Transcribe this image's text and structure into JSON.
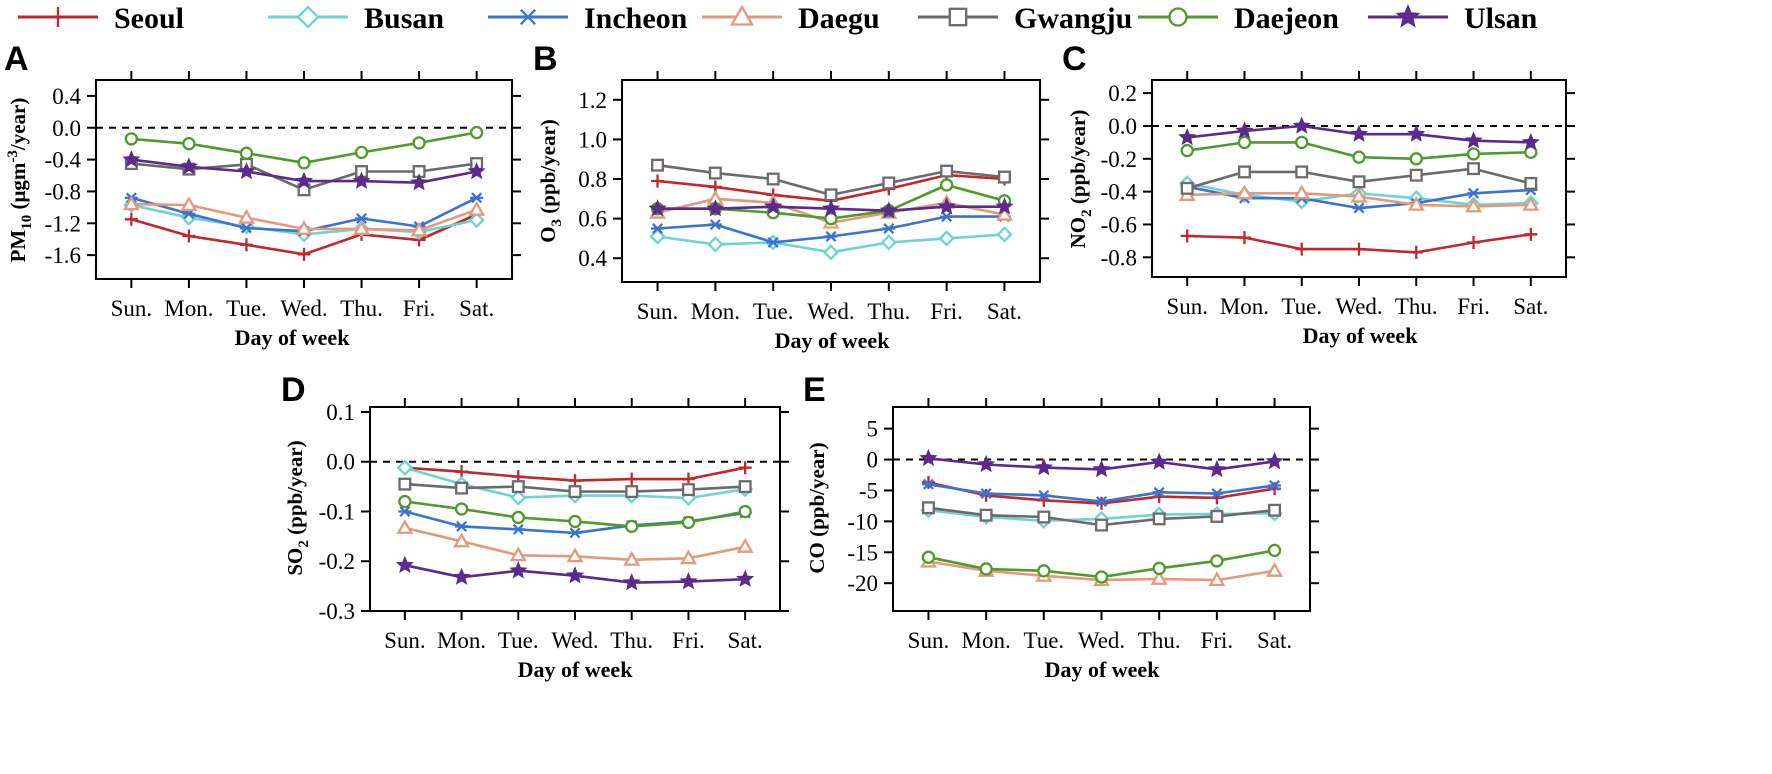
{
  "colors": {
    "Seoul": "#c0282d",
    "Busan": "#6fd3d3",
    "Incheon": "#3a74d0",
    "Daegu": "#e39a7c",
    "Gwangju": "#6b6b6b",
    "Daejeon": "#4f9a2a",
    "Ulsan": "#5b2a8c"
  },
  "legend": [
    {
      "name": "Seoul",
      "marker": "plus"
    },
    {
      "name": "Busan",
      "marker": "diamond"
    },
    {
      "name": "Incheon",
      "marker": "asterisk"
    },
    {
      "name": "Daegu",
      "marker": "triangle"
    },
    {
      "name": "Gwangju",
      "marker": "square"
    },
    {
      "name": "Daejeon",
      "marker": "circle"
    },
    {
      "name": "Ulsan",
      "marker": "star"
    }
  ],
  "chart_data": [
    {
      "type": "line",
      "panel": "A",
      "categories": [
        "Sun.",
        "Mon.",
        "Tue.",
        "Wed.",
        "Thu.",
        "Fri.",
        "Sat."
      ],
      "xlabel": "Day of week",
      "ylabel": {
        "pre": "PM",
        "sub": "10",
        "mid": " (μgm",
        "sup": "-3",
        "post": "/year)"
      },
      "ylim": [
        -1.9,
        0.6
      ],
      "yticks": [
        -1.6,
        -1.2,
        -0.8,
        -0.4,
        0.0,
        0.4
      ],
      "ytick_labels": [
        "-1.6",
        "-1.2",
        "-0.8",
        "-0.4",
        "0.0",
        "0.4"
      ],
      "reference_line": 0,
      "series": [
        {
          "name": "Seoul",
          "values": [
            -1.15,
            -1.36,
            -1.47,
            -1.59,
            -1.34,
            -1.41,
            -1.09
          ]
        },
        {
          "name": "Busan",
          "values": [
            -0.97,
            -1.13,
            -1.24,
            -1.34,
            -1.27,
            -1.31,
            -1.16
          ]
        },
        {
          "name": "Incheon",
          "values": [
            -0.88,
            -1.08,
            -1.26,
            -1.3,
            -1.14,
            -1.24,
            -0.88
          ]
        },
        {
          "name": "Daegu",
          "values": [
            -0.96,
            -0.97,
            -1.13,
            -1.27,
            -1.27,
            -1.29,
            -1.03
          ]
        },
        {
          "name": "Gwangju",
          "values": [
            -0.45,
            -0.52,
            -0.46,
            -0.78,
            -0.55,
            -0.55,
            -0.45
          ]
        },
        {
          "name": "Daejeon",
          "values": [
            -0.14,
            -0.2,
            -0.32,
            -0.44,
            -0.31,
            -0.19,
            -0.06
          ]
        },
        {
          "name": "Ulsan",
          "values": [
            -0.4,
            -0.49,
            -0.55,
            -0.67,
            -0.67,
            -0.69,
            -0.55
          ]
        }
      ]
    },
    {
      "type": "line",
      "panel": "B",
      "categories": [
        "Sun.",
        "Mon.",
        "Tue.",
        "Wed.",
        "Thu.",
        "Fri.",
        "Sat."
      ],
      "xlabel": "Day of week",
      "ylabel": {
        "pre": "O",
        "sub": "3",
        "mid": " (ppb/year)",
        "sup": "",
        "post": ""
      },
      "ylim": [
        0.28,
        1.3
      ],
      "yticks": [
        0.4,
        0.6,
        0.8,
        1.0,
        1.2
      ],
      "ytick_labels": [
        "0.4",
        "0.6",
        "0.8",
        "1.0",
        "1.2"
      ],
      "series": [
        {
          "name": "Seoul",
          "values": [
            0.79,
            0.76,
            0.72,
            0.69,
            0.75,
            0.82,
            0.8
          ]
        },
        {
          "name": "Busan",
          "values": [
            0.51,
            0.47,
            0.48,
            0.43,
            0.48,
            0.5,
            0.52
          ]
        },
        {
          "name": "Incheon",
          "values": [
            0.55,
            0.57,
            0.48,
            0.51,
            0.55,
            0.61,
            0.61
          ]
        },
        {
          "name": "Daegu",
          "values": [
            0.63,
            0.7,
            0.68,
            0.58,
            0.63,
            0.68,
            0.62
          ]
        },
        {
          "name": "Gwangju",
          "values": [
            0.87,
            0.83,
            0.8,
            0.72,
            0.78,
            0.84,
            0.81
          ]
        },
        {
          "name": "Daejeon",
          "values": [
            0.65,
            0.65,
            0.63,
            0.6,
            0.64,
            0.77,
            0.69
          ]
        },
        {
          "name": "Ulsan",
          "values": [
            0.65,
            0.65,
            0.66,
            0.65,
            0.64,
            0.66,
            0.66
          ]
        }
      ]
    },
    {
      "type": "line",
      "panel": "C",
      "categories": [
        "Sun.",
        "Mon.",
        "Tue.",
        "Wed.",
        "Thu.",
        "Fri.",
        "Sat."
      ],
      "xlabel": "Day of week",
      "ylabel": {
        "pre": "NO",
        "sub": "2",
        "mid": " (ppb/year)",
        "sup": "",
        "post": ""
      },
      "ylim": [
        -0.92,
        0.28
      ],
      "yticks": [
        -0.8,
        -0.6,
        -0.4,
        -0.2,
        0.0,
        0.2
      ],
      "ytick_labels": [
        "-0.8",
        "-0.6",
        "-0.4",
        "-0.2",
        "0.0",
        "0.2"
      ],
      "reference_line": 0,
      "series": [
        {
          "name": "Seoul",
          "values": [
            -0.67,
            -0.68,
            -0.75,
            -0.75,
            -0.77,
            -0.71,
            -0.66
          ]
        },
        {
          "name": "Busan",
          "values": [
            -0.35,
            -0.42,
            -0.46,
            -0.41,
            -0.44,
            -0.48,
            -0.47
          ]
        },
        {
          "name": "Incheon",
          "values": [
            -0.37,
            -0.44,
            -0.44,
            -0.5,
            -0.47,
            -0.41,
            -0.39
          ]
        },
        {
          "name": "Daegu",
          "values": [
            -0.42,
            -0.41,
            -0.41,
            -0.43,
            -0.48,
            -0.49,
            -0.48
          ]
        },
        {
          "name": "Gwangju",
          "values": [
            -0.38,
            -0.28,
            -0.28,
            -0.34,
            -0.3,
            -0.26,
            -0.35
          ]
        },
        {
          "name": "Daejeon",
          "values": [
            -0.15,
            -0.1,
            -0.1,
            -0.19,
            -0.2,
            -0.17,
            -0.16
          ]
        },
        {
          "name": "Ulsan",
          "values": [
            -0.07,
            -0.03,
            0.0,
            -0.05,
            -0.05,
            -0.09,
            -0.1
          ]
        }
      ]
    },
    {
      "type": "line",
      "panel": "D",
      "categories": [
        "Sun.",
        "Mon.",
        "Tue.",
        "Wed.",
        "Thu.",
        "Fri.",
        "Sat."
      ],
      "xlabel": "Day of week",
      "ylabel": {
        "pre": "SO",
        "sub": "2",
        "mid": " (ppb/year)",
        "sup": "",
        "post": ""
      },
      "ylim": [
        -0.3,
        0.11
      ],
      "yticks": [
        -0.3,
        -0.2,
        -0.1,
        0.0,
        0.1
      ],
      "ytick_labels": [
        "-0.3",
        "-0.2",
        "-0.1",
        "0.0",
        "0.1"
      ],
      "reference_line": 0,
      "series": [
        {
          "name": "Seoul",
          "values": [
            -0.012,
            -0.02,
            -0.03,
            -0.038,
            -0.035,
            -0.035,
            -0.012
          ]
        },
        {
          "name": "Busan",
          "values": [
            -0.012,
            -0.045,
            -0.072,
            -0.068,
            -0.068,
            -0.073,
            -0.055
          ]
        },
        {
          "name": "Incheon",
          "values": [
            -0.1,
            -0.13,
            -0.136,
            -0.143,
            -0.128,
            -0.12,
            -0.103
          ]
        },
        {
          "name": "Daegu",
          "values": [
            -0.133,
            -0.16,
            -0.188,
            -0.19,
            -0.197,
            -0.194,
            -0.171
          ]
        },
        {
          "name": "Gwangju",
          "values": [
            -0.045,
            -0.053,
            -0.05,
            -0.06,
            -0.06,
            -0.056,
            -0.05
          ]
        },
        {
          "name": "Daejeon",
          "values": [
            -0.08,
            -0.095,
            -0.112,
            -0.12,
            -0.13,
            -0.122,
            -0.1
          ]
        },
        {
          "name": "Ulsan",
          "values": [
            -0.208,
            -0.232,
            -0.219,
            -0.229,
            -0.243,
            -0.241,
            -0.236
          ]
        }
      ]
    },
    {
      "type": "line",
      "panel": "E",
      "categories": [
        "Sun.",
        "Mon.",
        "Tue.",
        "Wed.",
        "Thu.",
        "Fri.",
        "Sat."
      ],
      "xlabel": "Day of week",
      "ylabel": {
        "pre": "CO (ppb/year)",
        "sub": "",
        "mid": "",
        "sup": "",
        "post": ""
      },
      "ylim": [
        -24.5,
        8.5
      ],
      "yticks": [
        -20,
        -15,
        -10,
        -5,
        0,
        5
      ],
      "ytick_labels": [
        "-20",
        "-15",
        "-10",
        "-5",
        "0",
        "5"
      ],
      "reference_line": 0,
      "series": [
        {
          "name": "Seoul",
          "values": [
            -3.7,
            -5.8,
            -6.6,
            -7.1,
            -6.0,
            -6.2,
            -4.7
          ]
        },
        {
          "name": "Busan",
          "values": [
            -8.2,
            -9.3,
            -9.9,
            -9.6,
            -8.9,
            -8.8,
            -8.7
          ]
        },
        {
          "name": "Incheon",
          "values": [
            -4.0,
            -5.5,
            -5.8,
            -6.8,
            -5.3,
            -5.5,
            -4.2
          ]
        },
        {
          "name": "Daegu",
          "values": [
            -16.5,
            -18.0,
            -18.8,
            -19.5,
            -19.3,
            -19.5,
            -18.0
          ]
        },
        {
          "name": "Gwangju",
          "values": [
            -7.8,
            -9.0,
            -9.3,
            -10.6,
            -9.6,
            -9.2,
            -8.2
          ]
        },
        {
          "name": "Daejeon",
          "values": [
            -15.8,
            -17.7,
            -18.0,
            -19.0,
            -17.6,
            -16.4,
            -14.7
          ]
        },
        {
          "name": "Ulsan",
          "values": [
            0.2,
            -0.8,
            -1.3,
            -1.6,
            -0.4,
            -1.6,
            -0.3
          ]
        }
      ]
    }
  ]
}
